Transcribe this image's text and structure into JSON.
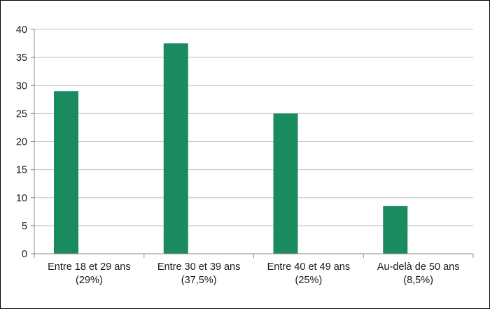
{
  "chart_data": {
    "type": "bar",
    "categories": [
      {
        "line1": "Entre 18 et 29 ans",
        "line2": "(29%)"
      },
      {
        "line1": "Entre 30 et 39 ans",
        "line2": "(37,5%)"
      },
      {
        "line1": "Entre 40 et 49 ans",
        "line2": "(25%)"
      },
      {
        "line1": "Au-delà de 50 ans",
        "line2": "(8,5%)"
      }
    ],
    "values": [
      29,
      37.5,
      25,
      8.5
    ],
    "yticks": [
      "0",
      "5",
      "10",
      "15",
      "20",
      "25",
      "30",
      "35",
      "40"
    ],
    "ylim": [
      0,
      40
    ],
    "grid": true,
    "legend": "none",
    "bar_color": "#1a8a5f"
  }
}
